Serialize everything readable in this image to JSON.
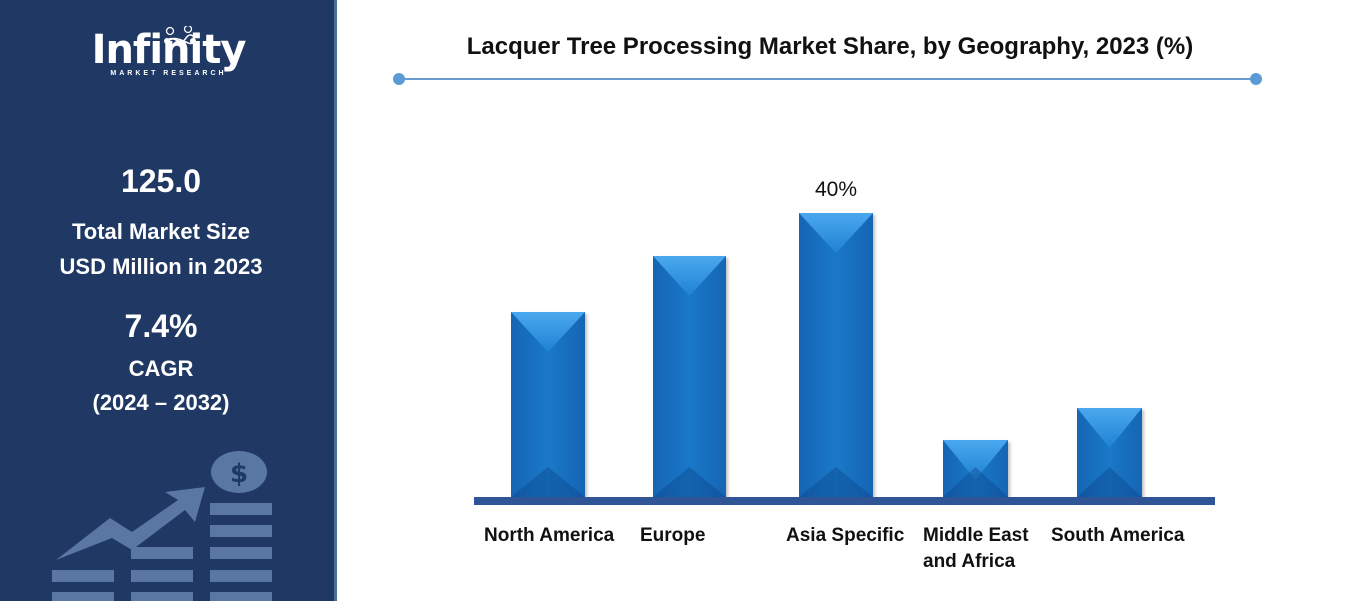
{
  "sidebar": {
    "logo_text": "Infinity",
    "logo_subtext": "MARKET RESEARCH",
    "market_size_value": "125.0",
    "market_size_label_1": "Total Market Size",
    "market_size_label_2": "USD Million in 2023",
    "cagr_value": "7.4%",
    "cagr_label": "CAGR",
    "cagr_period": "(2024 – 2032)"
  },
  "chart_data": {
    "type": "bar",
    "title": "Lacquer Tree Processing Market Share, by Geography, 2023 (%)",
    "categories": [
      "North America",
      "Europe",
      "Asia Specific",
      "Middle East and Africa",
      "South America"
    ],
    "values": [
      26,
      34,
      40,
      8,
      12.5
    ],
    "data_labels": [
      "",
      "",
      "40%",
      "",
      ""
    ],
    "xlabel": "",
    "ylabel": "",
    "ylim": [
      0,
      40
    ],
    "grid": false,
    "legend": "none",
    "bar_color": "#1a72c2"
  }
}
